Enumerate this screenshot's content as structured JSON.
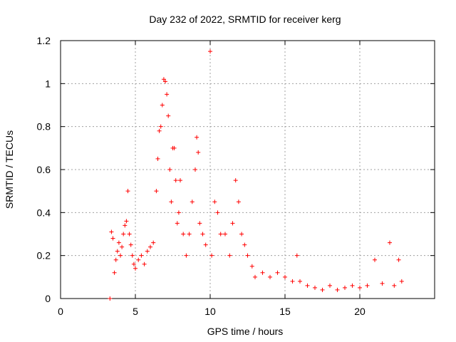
{
  "chart_data": {
    "type": "scatter",
    "title": "Day 232 of 2022, SRMTID for receiver kerg",
    "xlabel": "GPS time / hours",
    "ylabel": "SRMTID / TECUs",
    "xlim": [
      0,
      25
    ],
    "ylim": [
      0,
      1.2
    ],
    "x_ticks": [
      "0",
      "5",
      "10",
      "15",
      "20"
    ],
    "y_ticks": [
      "0",
      "0.2",
      "0.4",
      "0.6",
      "0.8",
      "1",
      "1.2"
    ],
    "grid": true,
    "marker": "+",
    "series": [
      {
        "name": "SRMTID",
        "color": "#ff0000",
        "points": [
          [
            3.3,
            0.0
          ],
          [
            3.4,
            0.31
          ],
          [
            3.5,
            0.28
          ],
          [
            3.6,
            0.12
          ],
          [
            3.7,
            0.18
          ],
          [
            3.8,
            0.22
          ],
          [
            3.9,
            0.26
          ],
          [
            4.0,
            0.2
          ],
          [
            4.1,
            0.24
          ],
          [
            4.2,
            0.3
          ],
          [
            4.3,
            0.34
          ],
          [
            4.4,
            0.36
          ],
          [
            4.5,
            0.5
          ],
          [
            4.6,
            0.3
          ],
          [
            4.7,
            0.25
          ],
          [
            4.8,
            0.2
          ],
          [
            4.9,
            0.16
          ],
          [
            5.0,
            0.14
          ],
          [
            5.2,
            0.18
          ],
          [
            5.4,
            0.2
          ],
          [
            5.6,
            0.16
          ],
          [
            5.8,
            0.22
          ],
          [
            6.0,
            0.24
          ],
          [
            6.2,
            0.26
          ],
          [
            6.4,
            0.5
          ],
          [
            6.5,
            0.65
          ],
          [
            6.6,
            0.78
          ],
          [
            6.7,
            0.8
          ],
          [
            6.8,
            0.9
          ],
          [
            6.9,
            1.02
          ],
          [
            7.0,
            1.01
          ],
          [
            7.1,
            0.95
          ],
          [
            7.2,
            0.85
          ],
          [
            7.3,
            0.6
          ],
          [
            7.4,
            0.45
          ],
          [
            7.5,
            0.7
          ],
          [
            7.6,
            0.7
          ],
          [
            7.7,
            0.55
          ],
          [
            7.8,
            0.35
          ],
          [
            7.9,
            0.4
          ],
          [
            8.0,
            0.55
          ],
          [
            8.2,
            0.3
          ],
          [
            8.4,
            0.2
          ],
          [
            8.6,
            0.3
          ],
          [
            8.8,
            0.45
          ],
          [
            9.0,
            0.6
          ],
          [
            9.1,
            0.75
          ],
          [
            9.2,
            0.68
          ],
          [
            9.3,
            0.35
          ],
          [
            9.5,
            0.3
          ],
          [
            9.7,
            0.25
          ],
          [
            10.0,
            1.15
          ],
          [
            10.1,
            0.2
          ],
          [
            10.3,
            0.45
          ],
          [
            10.5,
            0.4
          ],
          [
            10.7,
            0.3
          ],
          [
            11.0,
            0.3
          ],
          [
            11.3,
            0.2
          ],
          [
            11.5,
            0.35
          ],
          [
            11.7,
            0.55
          ],
          [
            11.9,
            0.45
          ],
          [
            12.1,
            0.3
          ],
          [
            12.3,
            0.25
          ],
          [
            12.5,
            0.2
          ],
          [
            12.8,
            0.15
          ],
          [
            13.0,
            0.1
          ],
          [
            13.5,
            0.12
          ],
          [
            14.0,
            0.1
          ],
          [
            14.5,
            0.12
          ],
          [
            15.0,
            0.1
          ],
          [
            15.5,
            0.08
          ],
          [
            15.8,
            0.2
          ],
          [
            16.0,
            0.08
          ],
          [
            16.5,
            0.06
          ],
          [
            17.0,
            0.05
          ],
          [
            17.5,
            0.04
          ],
          [
            18.0,
            0.06
          ],
          [
            18.5,
            0.04
          ],
          [
            19.0,
            0.05
          ],
          [
            19.5,
            0.06
          ],
          [
            20.0,
            0.05
          ],
          [
            20.5,
            0.06
          ],
          [
            21.0,
            0.18
          ],
          [
            21.5,
            0.07
          ],
          [
            22.0,
            0.26
          ],
          [
            22.3,
            0.06
          ],
          [
            22.6,
            0.18
          ],
          [
            22.8,
            0.08
          ]
        ]
      }
    ]
  }
}
